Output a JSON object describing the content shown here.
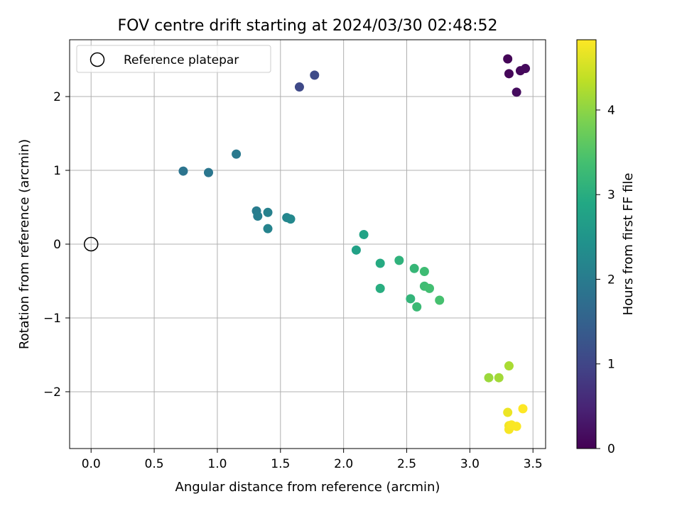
{
  "chart_data": {
    "type": "scatter",
    "title": "FOV centre drift starting at 2024/03/30 02:48:52",
    "xlabel": "Angular distance from reference (arcmin)",
    "ylabel": "Rotation from reference (arcmin)",
    "colorbar_label": "Hours from first FF file",
    "xlim": [
      -0.17,
      3.6
    ],
    "ylim": [
      -2.77,
      2.77
    ],
    "clim": [
      0,
      4.83
    ],
    "xticks": [
      0.0,
      0.5,
      1.0,
      1.5,
      2.0,
      2.5,
      3.0,
      3.5
    ],
    "xtick_labels": [
      "0.0",
      "0.5",
      "1.0",
      "1.5",
      "2.0",
      "2.5",
      "3.0",
      "3.5"
    ],
    "yticks": [
      -2,
      -1,
      0,
      1,
      2
    ],
    "ytick_labels": [
      "−2",
      "−1",
      "0",
      "1",
      "2"
    ],
    "cticks": [
      0,
      1,
      2,
      3,
      4
    ],
    "ctick_labels": [
      "0",
      "1",
      "2",
      "3",
      "4"
    ],
    "grid": true,
    "colormap": "viridis",
    "legend": {
      "label": "Reference platepar",
      "location": "top-left",
      "marker": "open-circle"
    },
    "reference_point": {
      "x": 0.0,
      "y": 0.0
    },
    "points": [
      {
        "x": 3.3,
        "y": 2.51,
        "c": 0.05
      },
      {
        "x": 3.31,
        "y": 2.31,
        "c": 0.08
      },
      {
        "x": 3.4,
        "y": 2.35,
        "c": 0.1
      },
      {
        "x": 3.44,
        "y": 2.38,
        "c": 0.12
      },
      {
        "x": 3.37,
        "y": 2.06,
        "c": 0.15
      },
      {
        "x": 1.65,
        "y": 2.13,
        "c": 1.05
      },
      {
        "x": 1.77,
        "y": 2.29,
        "c": 1.1
      },
      {
        "x": 0.73,
        "y": 0.99,
        "c": 1.85
      },
      {
        "x": 0.93,
        "y": 0.97,
        "c": 1.9
      },
      {
        "x": 1.15,
        "y": 1.22,
        "c": 1.95
      },
      {
        "x": 1.31,
        "y": 0.45,
        "c": 2.0
      },
      {
        "x": 1.32,
        "y": 0.38,
        "c": 2.05
      },
      {
        "x": 1.4,
        "y": 0.43,
        "c": 2.1
      },
      {
        "x": 1.4,
        "y": 0.21,
        "c": 2.15
      },
      {
        "x": 1.55,
        "y": 0.36,
        "c": 2.2
      },
      {
        "x": 1.58,
        "y": 0.34,
        "c": 2.25
      },
      {
        "x": 2.1,
        "y": -0.08,
        "c": 2.75
      },
      {
        "x": 2.16,
        "y": 0.13,
        "c": 2.8
      },
      {
        "x": 2.29,
        "y": -0.26,
        "c": 2.95
      },
      {
        "x": 2.29,
        "y": -0.6,
        "c": 3.0
      },
      {
        "x": 2.44,
        "y": -0.22,
        "c": 3.1
      },
      {
        "x": 2.53,
        "y": -0.74,
        "c": 3.15
      },
      {
        "x": 2.56,
        "y": -0.33,
        "c": 3.2
      },
      {
        "x": 2.58,
        "y": -0.85,
        "c": 3.25
      },
      {
        "x": 2.64,
        "y": -0.37,
        "c": 3.3
      },
      {
        "x": 2.64,
        "y": -0.57,
        "c": 3.32
      },
      {
        "x": 2.68,
        "y": -0.6,
        "c": 3.35
      },
      {
        "x": 2.76,
        "y": -0.76,
        "c": 3.4
      },
      {
        "x": 3.15,
        "y": -1.81,
        "c": 4.1
      },
      {
        "x": 3.23,
        "y": -1.81,
        "c": 4.15
      },
      {
        "x": 3.31,
        "y": -1.65,
        "c": 4.2
      },
      {
        "x": 3.3,
        "y": -2.28,
        "c": 4.7
      },
      {
        "x": 3.31,
        "y": -2.46,
        "c": 4.75
      },
      {
        "x": 3.31,
        "y": -2.51,
        "c": 4.78
      },
      {
        "x": 3.33,
        "y": -2.45,
        "c": 4.8
      },
      {
        "x": 3.37,
        "y": -2.47,
        "c": 4.81
      },
      {
        "x": 3.42,
        "y": -2.23,
        "c": 4.83
      }
    ]
  }
}
